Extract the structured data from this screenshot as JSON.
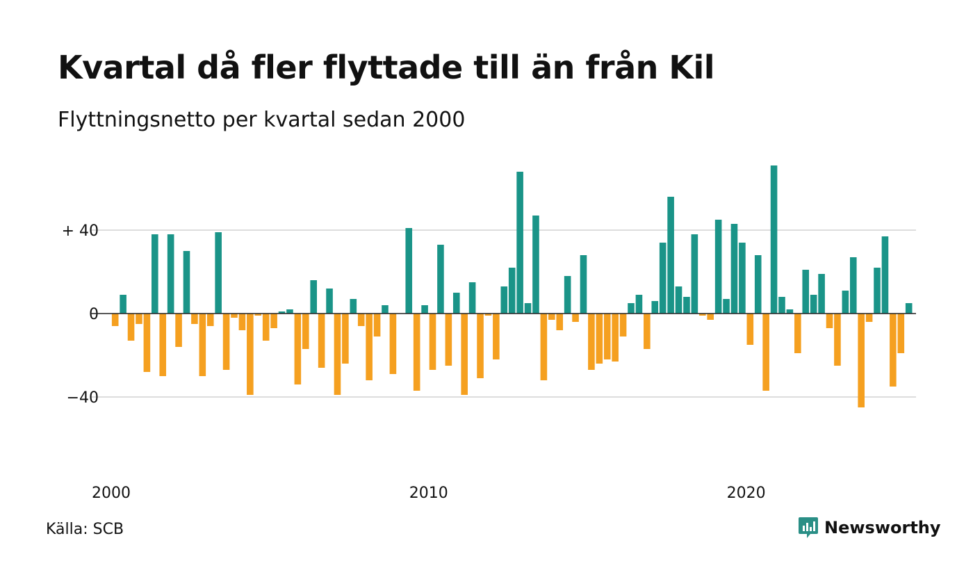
{
  "title": "Kvartal då fler flyttade till än från Kil",
  "subtitle": "Flyttningsnetto per kvartal sedan 2000",
  "source": "Källa: SCB",
  "brand": {
    "name": "Newsworthy",
    "color": "#2a8f86",
    "icon": "newsworthy-logo-icon"
  },
  "colors": {
    "positive": "#1a9488",
    "negative": "#f5a020",
    "grid": "#dddddd",
    "zero_line": "#222222"
  },
  "chart_data": {
    "type": "bar",
    "title": "Kvartal då fler flyttade till än från Kil",
    "subtitle": "Flyttningsnetto per kvartal sedan 2000",
    "xlabel": "",
    "ylabel": "",
    "x_start": "2000 Q1",
    "x_ticks": [
      {
        "label": "2000",
        "index": 0
      },
      {
        "label": "2010",
        "index": 40
      },
      {
        "label": "2020",
        "index": 80
      }
    ],
    "y_ticks": [
      {
        "label": "+ 40",
        "value": 40
      },
      {
        "label": "0",
        "value": 0
      },
      {
        "label": "−40",
        "value": -40
      }
    ],
    "ylim": [
      -60,
      75
    ],
    "grid": true,
    "values": [
      -6,
      9,
      -13,
      -5,
      -28,
      38,
      -30,
      38,
      -16,
      30,
      -5,
      -30,
      -6,
      39,
      -27,
      -2,
      -8,
      -39,
      -1,
      -13,
      -7,
      1,
      2,
      -34,
      -17,
      16,
      -26,
      12,
      -39,
      -24,
      7,
      -6,
      -32,
      -11,
      4,
      -29,
      0,
      41,
      -37,
      4,
      -27,
      33,
      -25,
      10,
      -39,
      15,
      -31,
      -1,
      -22,
      13,
      22,
      68,
      5,
      47,
      -32,
      -3,
      -8,
      18,
      -4,
      28,
      -27,
      -24,
      -22,
      -23,
      -11,
      5,
      9,
      -17,
      6,
      34,
      56,
      13,
      8,
      38,
      -1,
      -3,
      45,
      7,
      43,
      34,
      -15,
      28,
      -37,
      71,
      8,
      2,
      -19,
      21,
      9,
      19,
      -7,
      -25,
      11,
      27,
      -45,
      -4,
      22,
      37,
      -35,
      -19,
      5
    ]
  }
}
